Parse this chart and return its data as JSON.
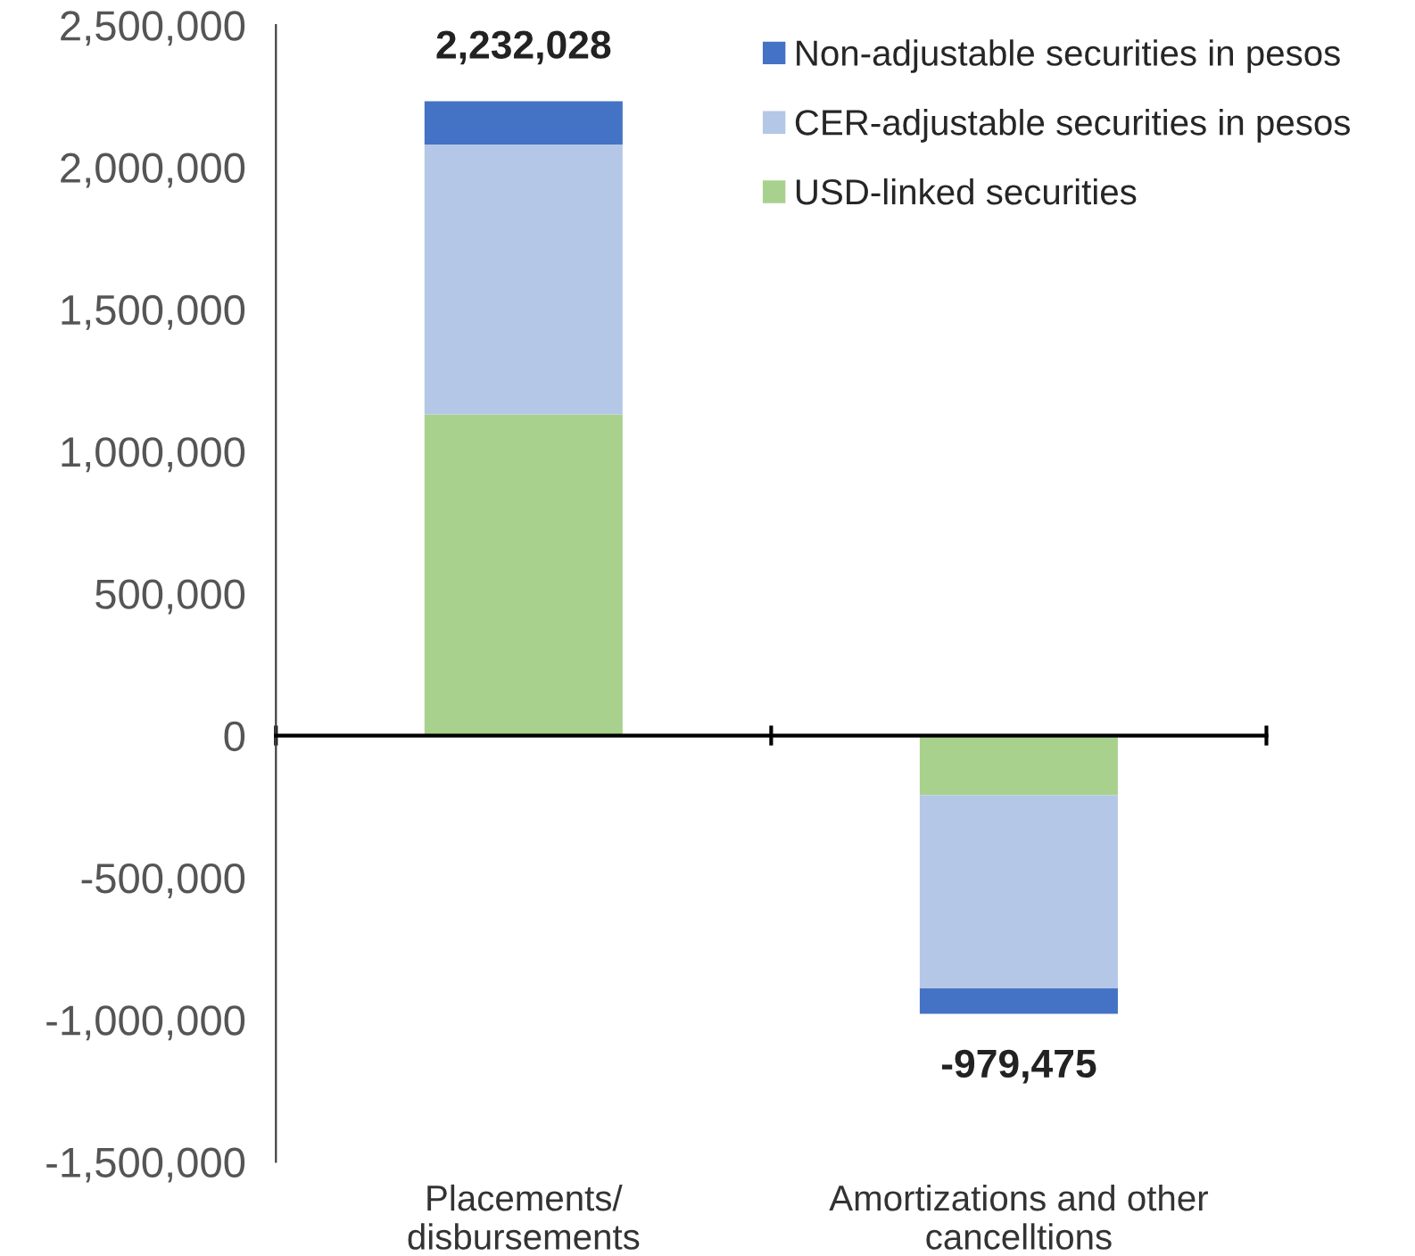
{
  "chart_data": {
    "type": "bar",
    "stacked": true,
    "categories": [
      "Placements/\ndisbursements",
      "Amortizations and other\ncancelltions"
    ],
    "series": [
      {
        "name": "USD-linked securities",
        "color": "#a9d18e",
        "values": [
          1130000,
          -210000
        ]
      },
      {
        "name": "CER-adjustable securities in pesos",
        "color": "#b4c7e7",
        "values": [
          950000,
          -680000
        ]
      },
      {
        "name": "Non-adjustable securities in pesos",
        "color": "#4472c4",
        "values": [
          152028,
          -89475
        ]
      }
    ],
    "totals": [
      "2,232,028",
      "-979,475"
    ],
    "ylim": [
      -1500000,
      2500000
    ],
    "yticks": [
      {
        "value": -1500000,
        "label": "-1,500,000"
      },
      {
        "value": -1000000,
        "label": "-1,000,000"
      },
      {
        "value": -500000,
        "label": "-500,000"
      },
      0,
      {
        "value": 500000,
        "label": "500,000"
      },
      {
        "value": 1000000,
        "label": "1,000,000"
      },
      {
        "value": 1500000,
        "label": "1,500,000"
      },
      {
        "value": 2000000,
        "label": "2,000,000"
      },
      {
        "value": 2500000,
        "label": "2,500,000"
      }
    ],
    "legend": "top right"
  }
}
